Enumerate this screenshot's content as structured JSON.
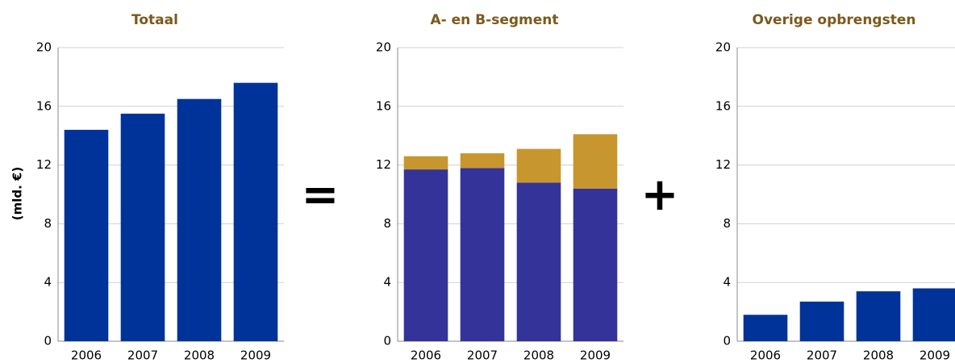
{
  "chart_data": [
    {
      "type": "bar",
      "title": "Totaal",
      "ylabel": "(mld. €)",
      "categories": [
        "2006",
        "2007",
        "2008",
        "2009"
      ],
      "values": [
        14.4,
        15.5,
        16.5,
        17.6
      ],
      "color": "#003399",
      "ylim": [
        0,
        20
      ],
      "yticks": [
        0,
        4,
        8,
        12,
        16,
        20
      ],
      "grid": true
    },
    {
      "type": "bar",
      "title": "A- en B-segment",
      "stacked": true,
      "categories": [
        "2006",
        "2007",
        "2008",
        "2009"
      ],
      "series": [
        {
          "color": "#333399",
          "values": [
            11.7,
            11.8,
            10.8,
            10.4
          ]
        },
        {
          "color": "#c8962e",
          "values": [
            0.9,
            1.0,
            2.3,
            3.7
          ]
        }
      ],
      "ylim": [
        0,
        20
      ],
      "yticks": [
        0,
        4,
        8,
        12,
        16,
        20
      ],
      "grid": true
    },
    {
      "type": "bar",
      "title": "Overige opbrengsten",
      "categories": [
        "2006",
        "2007",
        "2008",
        "2009"
      ],
      "values": [
        1.8,
        2.7,
        3.4,
        3.6
      ],
      "color": "#003399",
      "ylim": [
        0,
        20
      ],
      "yticks": [
        0,
        4,
        8,
        12,
        16,
        20
      ],
      "grid": true
    }
  ],
  "operators": [
    "=",
    "+"
  ]
}
